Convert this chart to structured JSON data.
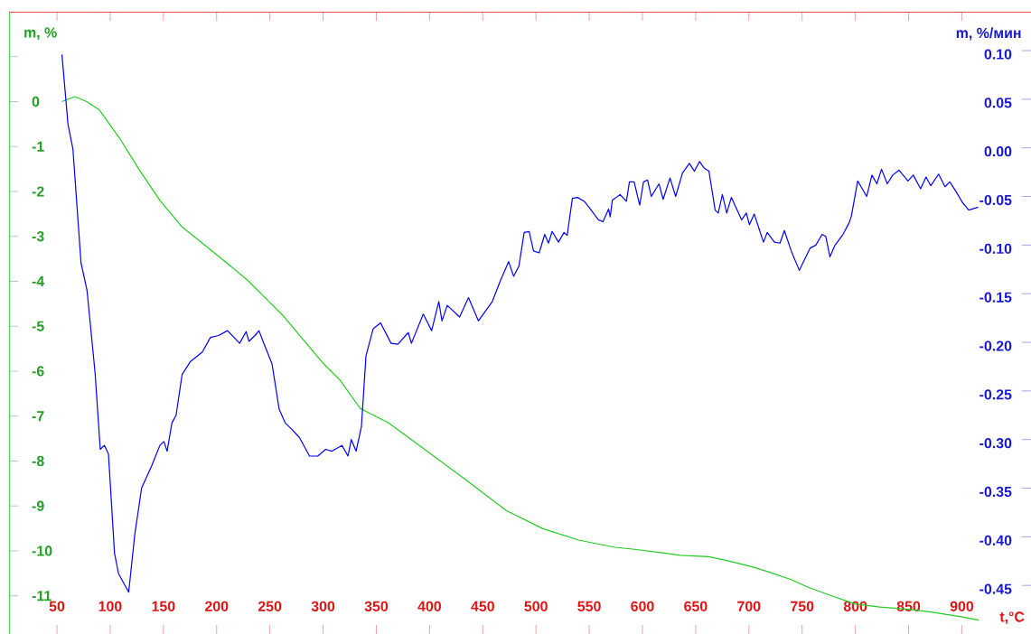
{
  "chart_data": {
    "type": "line",
    "xlabel": "t,°C",
    "ylabel": "m, %",
    "y2label": "m, %/мин",
    "xlim": [
      5,
      965
    ],
    "ylim": [
      -11.85,
      2
    ],
    "y2lim": [
      -0.5,
      0.14
    ],
    "xticks": [
      50,
      100,
      150,
      200,
      250,
      300,
      350,
      400,
      450,
      500,
      550,
      600,
      650,
      700,
      750,
      800,
      850,
      900
    ],
    "yticks": [
      -11,
      -10,
      -9,
      -8,
      -7,
      -6,
      -5,
      -4,
      -3,
      -2,
      -1,
      0,
      {
        "value": 1,
        "label": null
      }
    ],
    "y2ticks": [
      {
        "value": -0.45,
        "label": "-0.45"
      },
      {
        "value": -0.4,
        "label": "-0.40"
      },
      {
        "value": -0.35,
        "label": "-0.35"
      },
      {
        "value": -0.3,
        "label": "-0.30"
      },
      {
        "value": -0.25,
        "label": "-0.25"
      },
      {
        "value": -0.2,
        "label": "-0.20"
      },
      {
        "value": -0.15,
        "label": "-0.15"
      },
      {
        "value": -0.1,
        "label": "-0.10"
      },
      {
        "value": -0.05,
        "label": "-0.05"
      },
      {
        "value": 0.0,
        "label": "0.00"
      },
      {
        "value": 0.05,
        "label": "0.05"
      },
      {
        "value": 0.1,
        "label": "0.10"
      }
    ],
    "series": [
      {
        "color": "#22cc22",
        "x": [
          54.7,
          66.8,
          78,
          89.6,
          108.7,
          127.7,
          146.7,
          167.6,
          186.6,
          209.4,
          228.4,
          247.5,
          262.7,
          281.7,
          300.7,
          315.9,
          334.9,
          361.5,
          404,
          438,
          472,
          506,
          540,
          574,
          590.7,
          620.5,
          635.4,
          662.2,
          680.1,
          703.9,
          718.9,
          739.6,
          754.6,
          775.4,
          799.3,
          823.1,
          850,
          873.7,
          900.5,
          915.9
        ],
        "values": [
          0.0,
          0.11,
          0.0,
          -0.18,
          -0.81,
          -1.53,
          -2.2,
          -2.79,
          -3.15,
          -3.59,
          -3.96,
          -4.41,
          -4.77,
          -5.31,
          -5.84,
          -6.2,
          -6.83,
          -7.15,
          -7.89,
          -8.49,
          -9.1,
          -9.5,
          -9.76,
          -9.92,
          -9.96,
          -10.05,
          -10.1,
          -10.13,
          -10.22,
          -10.36,
          -10.47,
          -10.64,
          -10.8,
          -10.98,
          -11.18,
          -11.25,
          -11.3,
          -11.37,
          -11.47,
          -11.54
        ]
      },
      {
        "color": "#0000ff",
        "axis": "y2",
        "x": [
          54.7,
          60.4,
          65,
          72.6,
          78.3,
          85.8,
          90.7,
          94.6,
          98.4,
          104.1,
          107.9,
          117.4,
          123.1,
          129.5,
          139,
          146.7,
          150.5,
          153.5,
          158,
          161.9,
          167.6,
          175.2,
          186.6,
          194.2,
          201.8,
          210.2,
          221.6,
          227.7,
          230.3,
          236,
          239.8,
          243.6,
          252,
          258.8,
          264.5,
          270.2,
          277.8,
          287.3,
          294.9,
          302.5,
          308.2,
          317.7,
          323.4,
          326.5,
          331,
          336,
          340.3,
          347.1,
          354,
          363.9,
          370.3,
          380,
          383,
          394.1,
          402,
          408.7,
          411.7,
          416.6,
          428.3,
          436.6,
          445.9,
          459,
          466.4,
          474.3,
          479,
          483.9,
          488.9,
          493.6,
          497.7,
          503,
          508.2,
          511.7,
          515.2,
          521.1,
          526.3,
          529.3,
          534.2,
          539,
          545.4,
          551.2,
          558.6,
          562.9,
          568.2,
          569.7,
          571.7,
          579,
          584.9,
          587.8,
          592.2,
          597.4,
          601,
          604.8,
          608.3,
          615.6,
          619.4,
          625.9,
          631.2,
          637.6,
          644.1,
          648.8,
          653.7,
          658.1,
          662.5,
          668.3,
          671.2,
          675.1,
          679.2,
          683.5,
          693.2,
          697.6,
          700.5,
          705,
          713.7,
          717.2,
          724,
          729.2,
          733.3,
          740.1,
          747.4,
          757.6,
          762.9,
          768.8,
          772.2,
          776.1,
          781,
          788.4,
          794.2,
          796.3,
          802.2,
          810.6,
          815.6,
          820.2,
          824.6,
          830,
          835.1,
          841,
          849.4,
          854.4,
          861.3,
          866.4,
          870.9,
          878.2,
          884.2,
          888.7,
          894.6,
          900.5,
          906.5,
          915.4
        ],
        "values": [
          0.096,
          0.024,
          -0.001,
          -0.118,
          -0.147,
          -0.231,
          -0.31,
          -0.306,
          -0.315,
          -0.417,
          -0.438,
          -0.457,
          -0.398,
          -0.35,
          -0.327,
          -0.306,
          -0.302,
          -0.312,
          -0.283,
          -0.275,
          -0.233,
          -0.22,
          -0.21,
          -0.195,
          -0.193,
          -0.188,
          -0.201,
          -0.189,
          -0.199,
          -0.193,
          -0.188,
          -0.199,
          -0.222,
          -0.269,
          -0.283,
          -0.289,
          -0.298,
          -0.317,
          -0.317,
          -0.31,
          -0.312,
          -0.306,
          -0.317,
          -0.3,
          -0.312,
          -0.287,
          -0.214,
          -0.186,
          -0.18,
          -0.201,
          -0.202,
          -0.19,
          -0.201,
          -0.171,
          -0.188,
          -0.158,
          -0.178,
          -0.162,
          -0.174,
          -0.154,
          -0.178,
          -0.158,
          -0.137,
          -0.117,
          -0.132,
          -0.122,
          -0.087,
          -0.086,
          -0.106,
          -0.108,
          -0.089,
          -0.098,
          -0.086,
          -0.097,
          -0.087,
          -0.09,
          -0.052,
          -0.051,
          -0.055,
          -0.063,
          -0.074,
          -0.076,
          -0.063,
          -0.071,
          -0.054,
          -0.048,
          -0.055,
          -0.035,
          -0.035,
          -0.059,
          -0.035,
          -0.033,
          -0.05,
          -0.037,
          -0.053,
          -0.031,
          -0.05,
          -0.026,
          -0.016,
          -0.024,
          -0.014,
          -0.021,
          -0.024,
          -0.064,
          -0.067,
          -0.048,
          -0.067,
          -0.051,
          -0.074,
          -0.067,
          -0.079,
          -0.068,
          -0.097,
          -0.087,
          -0.097,
          -0.098,
          -0.085,
          -0.107,
          -0.126,
          -0.103,
          -0.1,
          -0.089,
          -0.091,
          -0.112,
          -0.1,
          -0.089,
          -0.077,
          -0.07,
          -0.034,
          -0.05,
          -0.028,
          -0.037,
          -0.022,
          -0.037,
          -0.028,
          -0.023,
          -0.034,
          -0.028,
          -0.042,
          -0.03,
          -0.039,
          -0.027,
          -0.04,
          -0.035,
          -0.045,
          -0.056,
          -0.064,
          -0.061
        ]
      }
    ]
  }
}
